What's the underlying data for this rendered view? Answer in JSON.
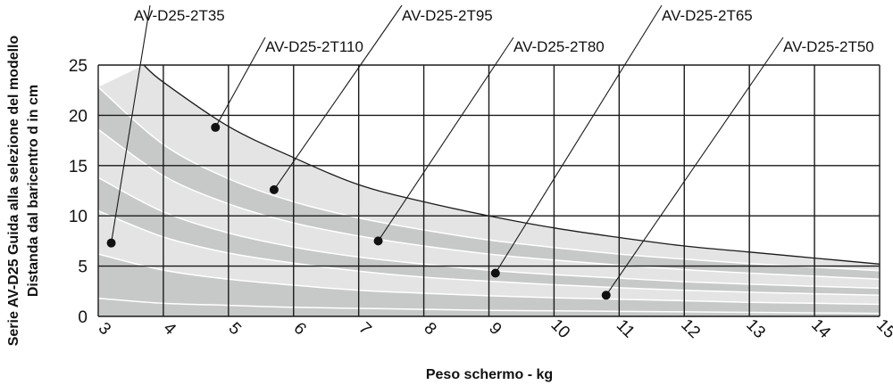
{
  "chart_data": {
    "type": "area",
    "title": "",
    "xlabel": "Peso schermo - kg",
    "ylabel_line1": "Serie AV-D25 Guida alla selezione del modello",
    "ylabel_line2": "Distanda dal baricentro d in cm",
    "xlim": [
      3,
      15
    ],
    "ylim": [
      0,
      25
    ],
    "x_ticks": [
      "3",
      "4",
      "5",
      "6",
      "7",
      "8",
      "9",
      "10",
      "11",
      "12",
      "13",
      "14",
      "15"
    ],
    "y_ticks": [
      "0",
      "5",
      "10",
      "15",
      "20",
      "25"
    ],
    "grid": true,
    "colors": {
      "dark_band": "#c7c9c8",
      "light_band": "#e3e4e3",
      "band_border": "#ffffff",
      "grid": "#1a1a1a",
      "outer_curve": "#1a1a1a"
    },
    "boundaries": [
      {
        "x": [
          3,
          4,
          5,
          6,
          7,
          8,
          9,
          10,
          11,
          12,
          13,
          14,
          15
        ],
        "y": [
          1.8,
          1.3,
          1.1,
          0.9,
          0.8,
          0.7,
          0.6,
          0.55,
          0.5,
          0.45,
          0.4,
          0.35,
          0.3
        ]
      },
      {
        "x": [
          3,
          4,
          5,
          6,
          7,
          8,
          9,
          10,
          11,
          12,
          13,
          14,
          15
        ],
        "y": [
          6.2,
          4.6,
          3.7,
          3.1,
          2.6,
          2.3,
          2.05,
          1.85,
          1.7,
          1.55,
          1.4,
          1.3,
          1.2
        ]
      },
      {
        "x": [
          3,
          4,
          5,
          6,
          7,
          8,
          9,
          10,
          11,
          12,
          13,
          14,
          15
        ],
        "y": [
          10.5,
          7.9,
          6.3,
          5.3,
          4.5,
          3.9,
          3.5,
          3.15,
          2.85,
          2.6,
          2.4,
          2.25,
          2.1
        ]
      },
      {
        "x": [
          3,
          4,
          5,
          6,
          7,
          8,
          9,
          10,
          11,
          12,
          13,
          14,
          15
        ],
        "y": [
          13.8,
          10.4,
          8.3,
          6.9,
          5.9,
          5.2,
          4.6,
          4.15,
          3.8,
          3.45,
          3.2,
          3.0,
          2.8
        ]
      },
      {
        "x": [
          3,
          4,
          5,
          6,
          7,
          8,
          9,
          10,
          11,
          12,
          13,
          14,
          15
        ],
        "y": [
          18.6,
          14.0,
          11.2,
          9.3,
          8.0,
          7.0,
          6.2,
          5.6,
          5.1,
          4.65,
          4.3,
          4.0,
          3.7
        ]
      },
      {
        "x": [
          3,
          4,
          5,
          6,
          7,
          8,
          9,
          10,
          11,
          12,
          13,
          14,
          15
        ],
        "y": [
          22.8,
          17.1,
          13.7,
          11.4,
          9.8,
          8.6,
          7.6,
          6.85,
          6.2,
          5.7,
          5.25,
          4.9,
          4.55
        ]
      },
      {
        "x": [
          3.7,
          4,
          5,
          6,
          7,
          8,
          9,
          10,
          11,
          12,
          13,
          14,
          15
        ],
        "y": [
          25,
          23.3,
          18.9,
          15.8,
          13.1,
          11.4,
          10.0,
          8.8,
          7.85,
          7.0,
          6.4,
          5.8,
          5.2
        ]
      }
    ],
    "bands": [
      {
        "lower": 0,
        "upper": 1,
        "shade": "dark"
      },
      {
        "lower": 1,
        "upper": 2,
        "shade": "light"
      },
      {
        "lower": 2,
        "upper": 3,
        "shade": "dark"
      },
      {
        "lower": 3,
        "upper": 4,
        "shade": "light"
      },
      {
        "lower": 4,
        "upper": 5,
        "shade": "dark"
      },
      {
        "lower": 5,
        "upper": 6,
        "shade": "light"
      }
    ],
    "series": [
      {
        "name": "AV-D25-2T35",
        "point": [
          3.2,
          7.3
        ]
      },
      {
        "name": "AV-D25-2T110",
        "point": [
          4.8,
          18.8
        ]
      },
      {
        "name": "AV-D25-2T95",
        "point": [
          5.7,
          12.6
        ]
      },
      {
        "name": "AV-D25-2T80",
        "point": [
          7.3,
          7.5
        ]
      },
      {
        "name": "AV-D25-2T65",
        "point": [
          9.1,
          4.3
        ]
      },
      {
        "name": "AV-D25-2T50",
        "point": [
          10.8,
          2.1
        ]
      }
    ]
  }
}
